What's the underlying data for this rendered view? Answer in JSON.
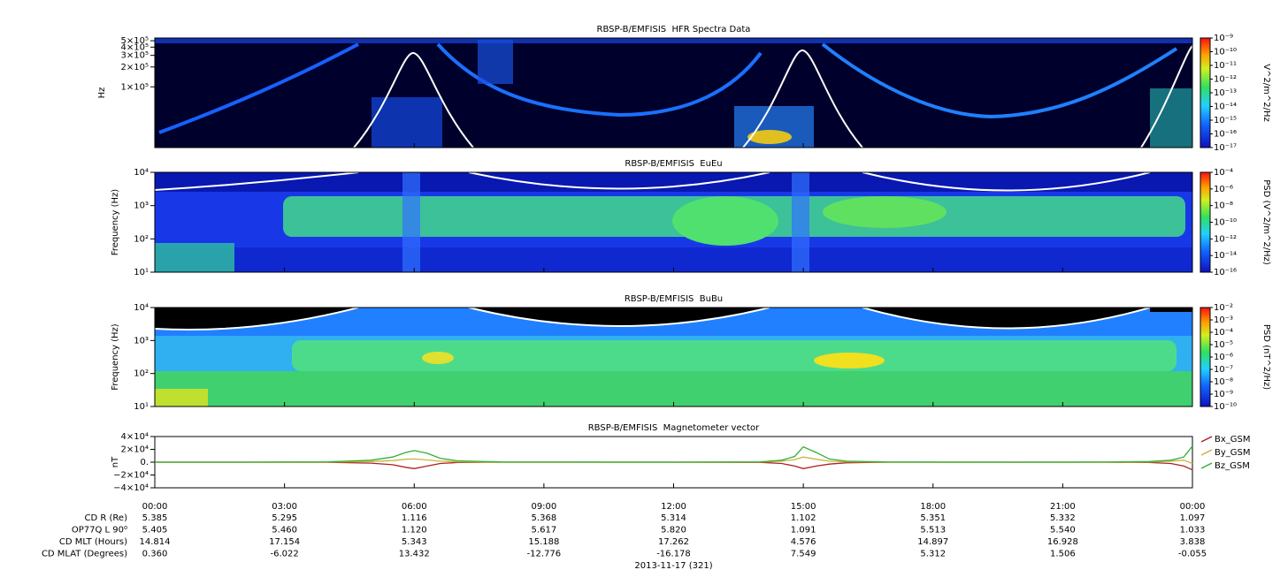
{
  "chart_data": [
    {
      "type": "spectrogram",
      "title": "RBSP-B/EMFISIS  HFR Spectra Data",
      "ylabel": "Hz",
      "log_y": true,
      "ylim": [
        12000,
        550000
      ],
      "yticks": [
        {
          "value": 500000,
          "label": "5×10⁵"
        },
        {
          "value": 400000,
          "label": "4×10⁵"
        },
        {
          "value": 300000,
          "label": "3×10⁵"
        },
        {
          "value": 200000,
          "label": "2×10⁵"
        },
        {
          "value": 100000,
          "label": "1×10⁵"
        }
      ],
      "colorbar_label": "V^2/m^2/Hz",
      "clim": [
        1e-17,
        1e-09
      ],
      "cticks": [
        {
          "value": 1e-09,
          "label": "10⁻⁹"
        },
        {
          "value": 1e-10,
          "label": "10⁻¹⁰"
        },
        {
          "value": 1e-11,
          "label": "10⁻¹¹"
        },
        {
          "value": 1e-12,
          "label": "10⁻¹²"
        },
        {
          "value": 1e-13,
          "label": "10⁻¹³"
        },
        {
          "value": 1e-14,
          "label": "10⁻¹⁴"
        },
        {
          "value": 1e-15,
          "label": "10⁻¹⁵"
        },
        {
          "value": 1e-16,
          "label": "10⁻¹⁶"
        },
        {
          "value": 1e-17,
          "label": "10⁻¹⁷"
        }
      ]
    },
    {
      "type": "spectrogram",
      "title": "RBSP-B/EMFISIS  EuEu",
      "ylabel": "Frequency (Hz)",
      "log_y": true,
      "ylim": [
        10,
        10000
      ],
      "yticks": [
        {
          "value": 10,
          "label": "10¹"
        },
        {
          "value": 100,
          "label": "10²"
        },
        {
          "value": 1000,
          "label": "10³"
        },
        {
          "value": 10000,
          "label": "10⁴"
        }
      ],
      "colorbar_label": "PSD (V^2/m^2/Hz)",
      "clim": [
        1e-16,
        0.0001
      ],
      "cticks": [
        {
          "value": 0.0001,
          "label": "10⁻⁴"
        },
        {
          "value": 1e-06,
          "label": "10⁻⁶"
        },
        {
          "value": 1e-08,
          "label": "10⁻⁸"
        },
        {
          "value": 1e-10,
          "label": "10⁻¹⁰"
        },
        {
          "value": 1e-12,
          "label": "10⁻¹²"
        },
        {
          "value": 1e-14,
          "label": "10⁻¹⁴"
        },
        {
          "value": 1e-16,
          "label": "10⁻¹⁶"
        }
      ]
    },
    {
      "type": "spectrogram",
      "title": "RBSP-B/EMFISIS  BuBu",
      "ylabel": "Frequency (Hz)",
      "log_y": true,
      "ylim": [
        10,
        10000
      ],
      "yticks": [
        {
          "value": 10,
          "label": "10¹"
        },
        {
          "value": 100,
          "label": "10²"
        },
        {
          "value": 1000,
          "label": "10³"
        },
        {
          "value": 10000,
          "label": "10⁴"
        }
      ],
      "colorbar_label": "PSD (nT^2/Hz)",
      "clim": [
        1e-10,
        0.01
      ],
      "cticks": [
        {
          "value": 0.01,
          "label": "10⁻²"
        },
        {
          "value": 0.001,
          "label": "10⁻³"
        },
        {
          "value": 0.0001,
          "label": "10⁻⁴"
        },
        {
          "value": 1e-05,
          "label": "10⁻⁵"
        },
        {
          "value": 1e-06,
          "label": "10⁻⁶"
        },
        {
          "value": 1e-07,
          "label": "10⁻⁷"
        },
        {
          "value": 1e-08,
          "label": "10⁻⁸"
        },
        {
          "value": 1e-09,
          "label": "10⁻⁹"
        },
        {
          "value": 1e-10,
          "label": "10⁻¹⁰"
        }
      ]
    },
    {
      "type": "line",
      "title": "RBSP-B/EMFISIS  Magnetometer vector",
      "ylabel": "nT",
      "xlabel": "2013-11-17 (321)",
      "ylim": [
        -40000,
        40000
      ],
      "yticks": [
        {
          "value": 40000,
          "label": "4×10⁴"
        },
        {
          "value": 20000,
          "label": "2×10⁴"
        },
        {
          "value": 0,
          "label": "0."
        },
        {
          "value": -20000,
          "label": "−2×10⁴"
        },
        {
          "value": -40000,
          "label": "−4×10⁴"
        }
      ],
      "xlim": [
        0,
        24
      ],
      "xticks": [
        {
          "value": 0,
          "label": "00:00"
        },
        {
          "value": 3,
          "label": "03:00"
        },
        {
          "value": 6,
          "label": "06:00"
        },
        {
          "value": 9,
          "label": "09:00"
        },
        {
          "value": 12,
          "label": "12:00"
        },
        {
          "value": 15,
          "label": "15:00"
        },
        {
          "value": 18,
          "label": "18:00"
        },
        {
          "value": 21,
          "label": "21:00"
        },
        {
          "value": 24,
          "label": "00:00"
        }
      ],
      "x": [
        0,
        2,
        4,
        5,
        5.5,
        5.8,
        6,
        6.3,
        6.6,
        7,
        8,
        12,
        14,
        14.5,
        14.8,
        15,
        15.3,
        15.6,
        16,
        17,
        20,
        22,
        23,
        23.5,
        23.8,
        24
      ],
      "series": [
        {
          "name": "Bx_GSM",
          "color": "#b02020",
          "values": [
            0,
            0,
            -200,
            -1500,
            -4000,
            -8000,
            -10000,
            -6000,
            -2000,
            -500,
            0,
            0,
            -300,
            -2000,
            -6000,
            -10000,
            -6000,
            -3000,
            -1000,
            0,
            0,
            0,
            -500,
            -2000,
            -6000,
            -12000
          ]
        },
        {
          "name": "By_GSM",
          "color": "#c8b440",
          "values": [
            0,
            0,
            100,
            1000,
            2500,
            4500,
            5000,
            3500,
            1500,
            500,
            0,
            0,
            200,
            1500,
            4000,
            8000,
            4500,
            1500,
            500,
            0,
            0,
            0,
            300,
            1500,
            3000,
            -2000
          ]
        },
        {
          "name": "Bz_GSM",
          "color": "#30b030",
          "values": [
            0,
            0,
            500,
            3000,
            8000,
            15000,
            18000,
            14000,
            6000,
            2000,
            300,
            0,
            500,
            3000,
            9000,
            24000,
            15000,
            5000,
            1500,
            200,
            0,
            100,
            1000,
            3000,
            8000,
            25000
          ]
        }
      ]
    }
  ],
  "ephemeris": {
    "rows": [
      {
        "label": "CD R (Re)",
        "values": [
          "5.385",
          "5.295",
          "1.116",
          "5.368",
          "5.314",
          "1.102",
          "5.351",
          "5.332",
          "1.097"
        ]
      },
      {
        "label": "OP77Q L 90⁰",
        "values": [
          "5.405",
          "5.460",
          "1.120",
          "5.617",
          "5.820",
          "1.091",
          "5.513",
          "5.540",
          "1.033"
        ]
      },
      {
        "label": "CD MLT (Hours)",
        "values": [
          "14.814",
          "17.154",
          "5.343",
          "15.188",
          "17.262",
          "4.576",
          "14.897",
          "16.928",
          "3.838"
        ]
      },
      {
        "label": "CD MLAT (Degrees)",
        "values": [
          "0.360",
          "-6.022",
          "13.432",
          "-12.776",
          "-16.178",
          "7.549",
          "5.312",
          "1.506",
          "-0.055"
        ]
      }
    ]
  }
}
